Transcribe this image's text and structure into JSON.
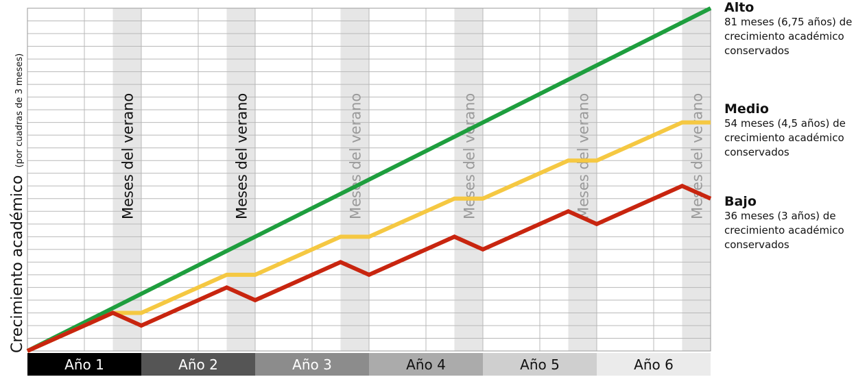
{
  "chart_data": {
    "type": "line",
    "ylabel": "Crecimiento académico",
    "ylabel_note": "(por cuadras de 3 meses)",
    "categories": [
      "Año 1",
      "Año 2",
      "Año 3",
      "Año 4",
      "Año 5",
      "Año 6"
    ],
    "category_colors": [
      "#000000",
      "#555555",
      "#8c8c8c",
      "#ababab",
      "#cfcfcf",
      "#ebebeb"
    ],
    "category_text_colors": [
      "#ffffff",
      "#ffffff",
      "#ffffff",
      "#111111",
      "#111111",
      "#111111"
    ],
    "summer_label": "Meses del verano",
    "summer_label_colors": [
      "#111111",
      "#111111",
      "#9a9a9a",
      "#9a9a9a",
      "#9a9a9a",
      "#9a9a9a"
    ],
    "x_range_months": [
      0,
      72
    ],
    "y_range_months": [
      0,
      81
    ],
    "y_grid_step_months": 3,
    "series": [
      {
        "name": "Alto",
        "color": "#1e9e3e",
        "points": [
          [
            0,
            0
          ],
          [
            72,
            81
          ]
        ]
      },
      {
        "name": "Medio",
        "color": "#f5c842",
        "points": [
          [
            0,
            0
          ],
          [
            9,
            9
          ],
          [
            12,
            9
          ],
          [
            21,
            18
          ],
          [
            24,
            18
          ],
          [
            33,
            27
          ],
          [
            36,
            27
          ],
          [
            45,
            36
          ],
          [
            48,
            36
          ],
          [
            57,
            45
          ],
          [
            60,
            45
          ],
          [
            69,
            54
          ],
          [
            72,
            54
          ]
        ]
      },
      {
        "name": "Bajo",
        "color": "#c8250f",
        "points": [
          [
            0,
            0
          ],
          [
            9,
            9
          ],
          [
            12,
            6
          ],
          [
            21,
            15
          ],
          [
            24,
            12
          ],
          [
            33,
            21
          ],
          [
            36,
            18
          ],
          [
            45,
            27
          ],
          [
            48,
            24
          ],
          [
            57,
            33
          ],
          [
            60,
            30
          ],
          [
            69,
            39
          ],
          [
            72,
            36
          ]
        ]
      }
    ]
  },
  "legend": [
    {
      "name": "Alto",
      "desc": "81 meses (6,75 años) de\ncrecimiento académico\nconservados"
    },
    {
      "name": "Medio",
      "desc": "54 meses (4,5 años) de\ncrecimiento académico\nconservados"
    },
    {
      "name": "Bajo",
      "desc": "36 meses (3 años) de\ncrecimiento académico\nconservados"
    }
  ]
}
